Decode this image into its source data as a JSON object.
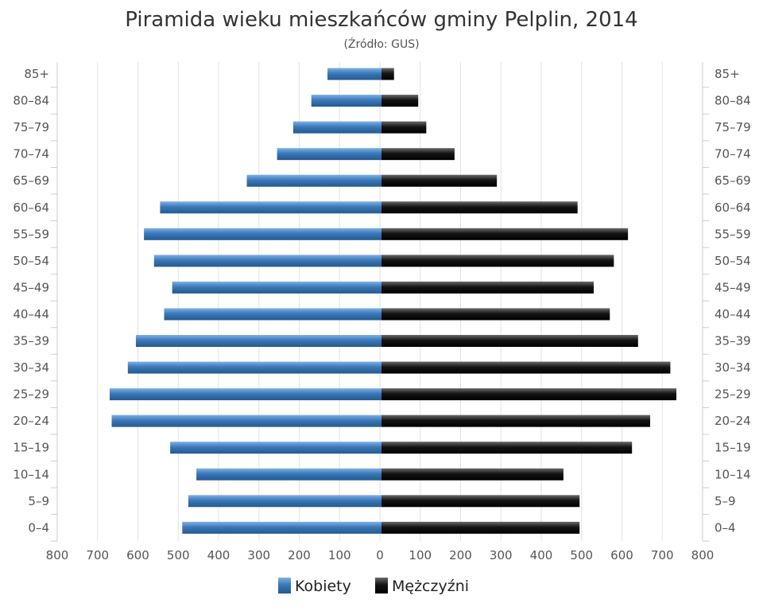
{
  "chart_data": {
    "type": "bar",
    "orientation": "horizontal",
    "layout": "population-pyramid",
    "title": "Piramida wieku mieszkańców gminy Pelplin, 2014",
    "subtitle": "(Źródło: GUS)",
    "categories": [
      "85+",
      "80–84",
      "75–79",
      "70–74",
      "65–69",
      "60–64",
      "55–59",
      "50–54",
      "45–49",
      "40–44",
      "35–39",
      "30–34",
      "25–29",
      "20–24",
      "15–19",
      "10–14",
      "5–9",
      "0–4"
    ],
    "series": [
      {
        "name": "Kobiety",
        "side": "left",
        "color": "#3a78b8",
        "values": [
          130,
          170,
          215,
          255,
          330,
          545,
          585,
          560,
          515,
          535,
          605,
          625,
          670,
          665,
          520,
          455,
          475,
          490
        ]
      },
      {
        "name": "Mężczyźni",
        "side": "right",
        "color": "#111111",
        "values": [
          35,
          95,
          115,
          185,
          290,
          490,
          615,
          580,
          530,
          570,
          640,
          720,
          735,
          670,
          625,
          455,
          495,
          495
        ]
      }
    ],
    "xlim": [
      -800,
      800
    ],
    "xticks": [
      "800",
      "700",
      "600",
      "500",
      "400",
      "300",
      "200",
      "100",
      "0",
      "100",
      "200",
      "300",
      "400",
      "500",
      "600",
      "700",
      "800"
    ],
    "grid": true,
    "legend_position": "bottom"
  }
}
